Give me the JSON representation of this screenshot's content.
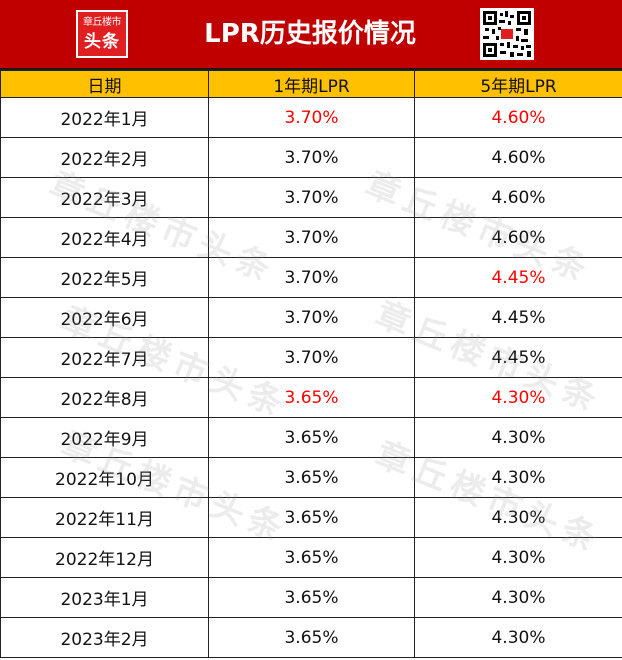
{
  "header": {
    "logo_line1": "章丘楼市",
    "logo_line2": "头条",
    "title": "LPR历史报价情况"
  },
  "table": {
    "columns": [
      "日期",
      "1年期LPR",
      "5年期LPR"
    ],
    "rows": [
      {
        "date": "2022年1月",
        "lpr1": "3.70%",
        "lpr5": "4.60%",
        "lpr1_highlight": true,
        "lpr5_highlight": true
      },
      {
        "date": "2022年2月",
        "lpr1": "3.70%",
        "lpr5": "4.60%",
        "lpr1_highlight": false,
        "lpr5_highlight": false
      },
      {
        "date": "2022年3月",
        "lpr1": "3.70%",
        "lpr5": "4.60%",
        "lpr1_highlight": false,
        "lpr5_highlight": false
      },
      {
        "date": "2022年4月",
        "lpr1": "3.70%",
        "lpr5": "4.60%",
        "lpr1_highlight": false,
        "lpr5_highlight": false
      },
      {
        "date": "2022年5月",
        "lpr1": "3.70%",
        "lpr5": "4.45%",
        "lpr1_highlight": false,
        "lpr5_highlight": true
      },
      {
        "date": "2022年6月",
        "lpr1": "3.70%",
        "lpr5": "4.45%",
        "lpr1_highlight": false,
        "lpr5_highlight": false
      },
      {
        "date": "2022年7月",
        "lpr1": "3.70%",
        "lpr5": "4.45%",
        "lpr1_highlight": false,
        "lpr5_highlight": false
      },
      {
        "date": "2022年8月",
        "lpr1": "3.65%",
        "lpr5": "4.30%",
        "lpr1_highlight": true,
        "lpr5_highlight": true
      },
      {
        "date": "2022年9月",
        "lpr1": "3.65%",
        "lpr5": "4.30%",
        "lpr1_highlight": false,
        "lpr5_highlight": false
      },
      {
        "date": "2022年10月",
        "lpr1": "3.65%",
        "lpr5": "4.30%",
        "lpr1_highlight": false,
        "lpr5_highlight": false
      },
      {
        "date": "2022年11月",
        "lpr1": "3.65%",
        "lpr5": "4.30%",
        "lpr1_highlight": false,
        "lpr5_highlight": false
      },
      {
        "date": "2022年12月",
        "lpr1": "3.65%",
        "lpr5": "4.30%",
        "lpr1_highlight": false,
        "lpr5_highlight": false
      },
      {
        "date": "2023年1月",
        "lpr1": "3.65%",
        "lpr5": "4.30%",
        "lpr1_highlight": false,
        "lpr5_highlight": false
      },
      {
        "date": "2023年2月",
        "lpr1": "3.65%",
        "lpr5": "4.30%",
        "lpr1_highlight": false,
        "lpr5_highlight": false
      }
    ]
  },
  "watermark": "章丘楼市头条",
  "colors": {
    "header_bg": "#c00000",
    "column_header_bg": "#ffc000",
    "highlight_text": "#ff0000",
    "normal_text": "#111111"
  }
}
